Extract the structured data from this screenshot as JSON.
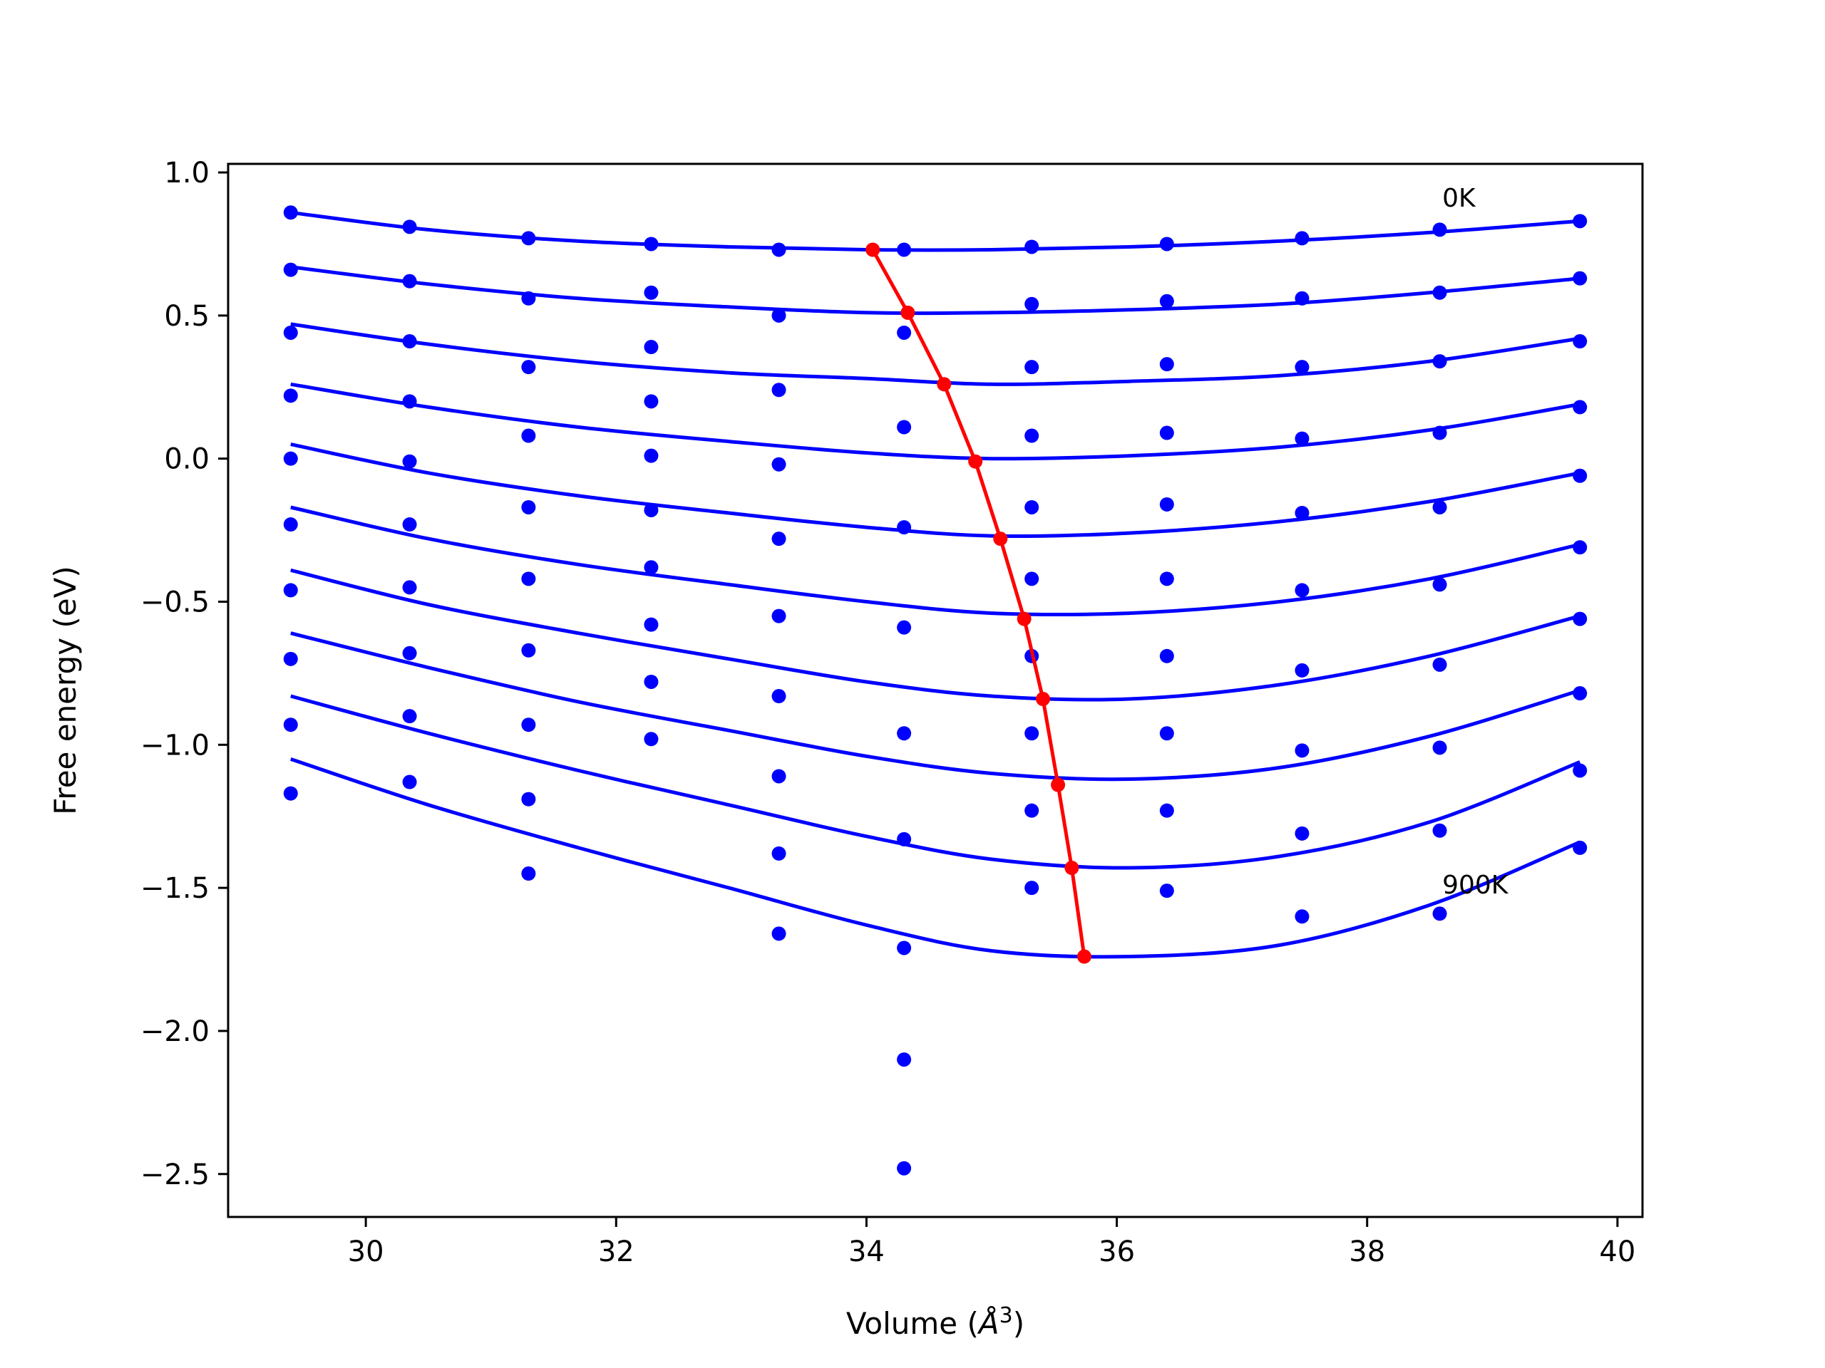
{
  "chart_data": {
    "type": "line",
    "title": "",
    "xlabel": "Volume (",
    "xlabel_unit": "Å",
    "xlabel_exp": "3",
    "xlabel_close": ")",
    "ylabel": "Free energy (eV)",
    "xlim": [
      28.9,
      40.2
    ],
    "ylim": [
      -2.65,
      1.03
    ],
    "xticks": [
      30,
      32,
      34,
      36,
      38,
      40
    ],
    "xtick_labels": [
      "30",
      "32",
      "34",
      "36",
      "38",
      "40"
    ],
    "yticks": [
      1.0,
      0.5,
      0.0,
      -0.5,
      -1.0,
      -1.5,
      -2.0,
      -2.5
    ],
    "ytick_labels": [
      "1.0",
      "0.5",
      "0.0",
      "−0.5",
      "−1.0",
      "−1.5",
      "−2.0",
      "−2.5"
    ],
    "grid": false,
    "annotations": [
      {
        "text": "0K",
        "x": 38.6,
        "y": 0.88
      },
      {
        "text": "900K",
        "x": 38.6,
        "y": -1.52
      }
    ],
    "colors": {
      "fits": "#0000ff",
      "points": "#0000ff",
      "minimum_path": "#ff0000"
    },
    "volumes": [
      29.4,
      30.35,
      31.3,
      32.28,
      33.3,
      34.3,
      35.32,
      36.4,
      37.48,
      38.58,
      39.7
    ],
    "fit_curves": [
      {
        "x": [
          29.4,
          30.5,
          31.7,
          32.9,
          34.0,
          35.0,
          36.1,
          37.3,
          38.5,
          39.7
        ],
        "y": [
          0.86,
          0.8,
          0.76,
          0.74,
          0.73,
          0.73,
          0.74,
          0.76,
          0.79,
          0.83
        ]
      },
      {
        "x": [
          29.4,
          30.5,
          31.7,
          32.9,
          34.0,
          35.0,
          36.1,
          37.3,
          38.5,
          39.7
        ],
        "y": [
          0.67,
          0.61,
          0.56,
          0.53,
          0.51,
          0.51,
          0.52,
          0.54,
          0.58,
          0.63
        ]
      },
      {
        "x": [
          29.4,
          30.5,
          31.7,
          32.9,
          34.0,
          35.0,
          36.1,
          37.3,
          38.5,
          39.7
        ],
        "y": [
          0.47,
          0.4,
          0.34,
          0.3,
          0.28,
          0.26,
          0.27,
          0.29,
          0.34,
          0.42
        ]
      },
      {
        "x": [
          29.4,
          30.5,
          31.7,
          32.9,
          34.0,
          35.0,
          36.1,
          37.3,
          38.5,
          39.7
        ],
        "y": [
          0.26,
          0.18,
          0.11,
          0.06,
          0.02,
          0.0,
          0.01,
          0.04,
          0.1,
          0.19
        ]
      },
      {
        "x": [
          29.4,
          30.5,
          31.7,
          32.9,
          34.0,
          35.0,
          36.1,
          37.3,
          38.5,
          39.7
        ],
        "y": [
          0.05,
          -0.05,
          -0.13,
          -0.19,
          -0.24,
          -0.27,
          -0.26,
          -0.22,
          -0.15,
          -0.05
        ]
      },
      {
        "x": [
          29.4,
          30.5,
          31.7,
          32.9,
          34.0,
          35.0,
          36.1,
          37.3,
          38.5,
          39.7
        ],
        "y": [
          -0.17,
          -0.28,
          -0.37,
          -0.44,
          -0.5,
          -0.54,
          -0.54,
          -0.5,
          -0.42,
          -0.3
        ]
      },
      {
        "x": [
          29.4,
          30.5,
          31.7,
          32.9,
          34.0,
          35.0,
          36.1,
          37.3,
          38.5,
          39.7
        ],
        "y": [
          -0.39,
          -0.51,
          -0.61,
          -0.7,
          -0.78,
          -0.83,
          -0.84,
          -0.79,
          -0.69,
          -0.55
        ]
      },
      {
        "x": [
          29.4,
          30.5,
          31.7,
          32.9,
          34.0,
          35.0,
          36.1,
          37.3,
          38.5,
          39.7
        ],
        "y": [
          -0.61,
          -0.73,
          -0.85,
          -0.95,
          -1.04,
          -1.1,
          -1.12,
          -1.08,
          -0.97,
          -0.81
        ]
      },
      {
        "x": [
          29.4,
          30.5,
          31.7,
          32.9,
          34.0,
          35.0,
          36.1,
          37.3,
          38.5,
          39.7
        ],
        "y": [
          -0.83,
          -0.96,
          -1.09,
          -1.21,
          -1.32,
          -1.4,
          -1.43,
          -1.39,
          -1.27,
          -1.06
        ]
      },
      {
        "x": [
          29.4,
          30.5,
          31.7,
          32.9,
          34.0,
          35.0,
          36.1,
          37.3,
          38.5,
          39.7
        ],
        "y": [
          -1.05,
          -1.21,
          -1.36,
          -1.5,
          -1.63,
          -1.72,
          -1.74,
          -1.7,
          -1.56,
          -1.34
        ]
      }
    ],
    "point_series": [
      [
        0.86,
        0.81,
        0.77,
        0.75,
        0.73,
        0.73,
        0.74,
        0.75,
        0.77,
        0.8,
        0.83
      ],
      [
        0.66,
        0.62,
        0.56,
        0.58,
        0.5,
        0.44,
        0.54,
        0.55,
        0.56,
        0.58,
        0.63
      ],
      [
        0.44,
        0.41,
        0.32,
        0.39,
        0.24,
        0.11,
        0.32,
        0.33,
        0.32,
        0.34,
        0.41
      ],
      [
        0.22,
        0.2,
        0.08,
        0.2,
        -0.02,
        -0.24,
        0.08,
        0.09,
        0.07,
        0.09,
        0.18
      ],
      [
        0.0,
        -0.01,
        -0.17,
        0.01,
        -0.28,
        -0.59,
        -0.17,
        -0.16,
        -0.19,
        -0.17,
        -0.06
      ],
      [
        -0.23,
        -0.23,
        -0.42,
        -0.18,
        -0.55,
        -0.96,
        -0.42,
        -0.42,
        -0.46,
        -0.44,
        -0.31
      ],
      [
        -0.46,
        -0.45,
        -0.67,
        -0.38,
        -0.83,
        -1.33,
        -0.69,
        -0.69,
        -0.74,
        -0.72,
        -0.56
      ],
      [
        -0.7,
        -0.68,
        -0.93,
        -0.58,
        -1.11,
        -1.71,
        -0.96,
        -0.96,
        -1.02,
        -1.01,
        -0.82
      ],
      [
        -0.93,
        -0.9,
        -1.19,
        -0.78,
        -1.38,
        -2.1,
        -1.23,
        -1.23,
        -1.31,
        -1.3,
        -1.09
      ],
      [
        -1.17,
        -1.13,
        -1.45,
        -0.98,
        -1.66,
        -2.48,
        -1.5,
        -1.51,
        -1.6,
        -1.59,
        -1.36
      ]
    ],
    "minimum_path": {
      "x": [
        34.05,
        34.33,
        34.62,
        34.87,
        35.07,
        35.26,
        35.41,
        35.53,
        35.64,
        35.74
      ],
      "y": [
        0.73,
        0.51,
        0.26,
        -0.01,
        -0.28,
        -0.56,
        -0.84,
        -1.14,
        -1.43,
        -1.74
      ]
    }
  }
}
